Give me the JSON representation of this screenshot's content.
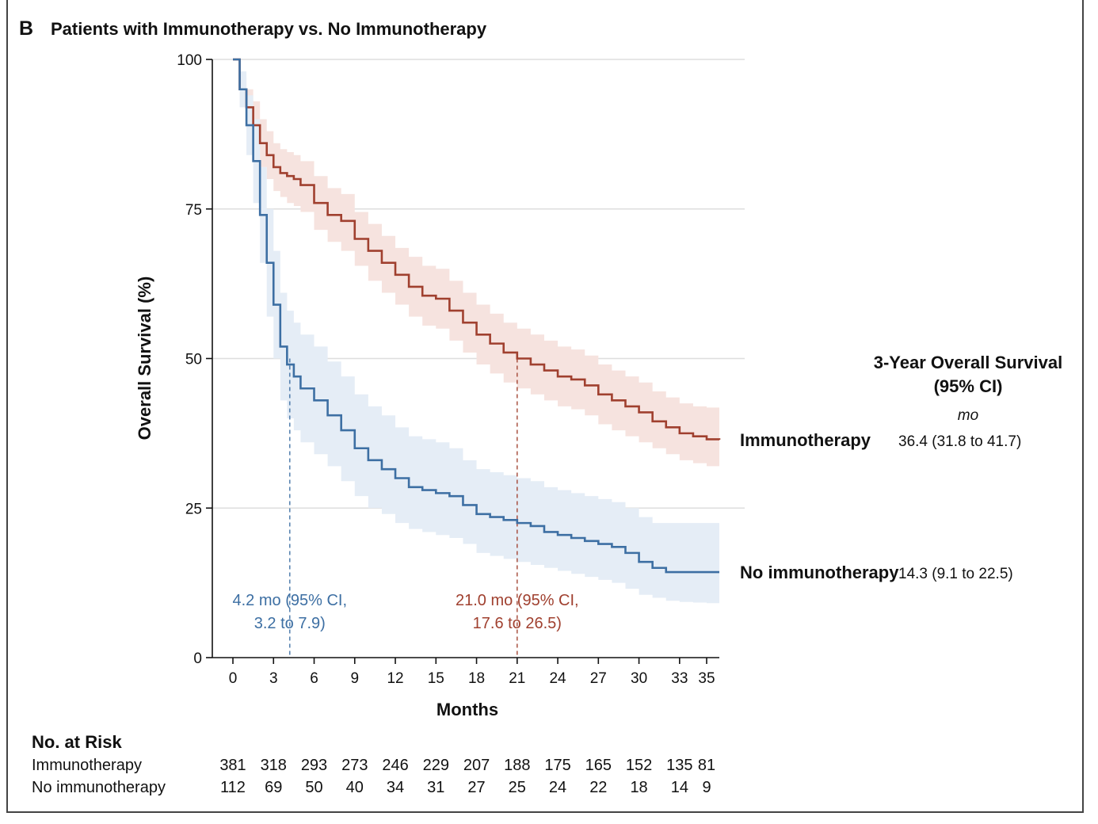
{
  "panel": {
    "letter": "B",
    "title": "Patients with Immunotherapy vs. No Immunotherapy"
  },
  "chart_data": {
    "type": "line",
    "title": "Patients with Immunotherapy vs. No Immunotherapy",
    "xlabel": "Months",
    "ylabel": "Overall Survival (%)",
    "xlim": [
      0,
      36
    ],
    "ylim": [
      0,
      100
    ],
    "xticks": [
      0,
      3,
      6,
      9,
      12,
      15,
      18,
      21,
      24,
      27,
      30,
      33,
      35
    ],
    "yticks": [
      0,
      25,
      50,
      75,
      100
    ],
    "grid": "horizontal",
    "series": [
      {
        "name": "Immunotherapy",
        "color": "#a0402f",
        "band_color": "#f6e3df",
        "x": [
          0,
          0.5,
          1,
          1.5,
          2,
          2.5,
          3,
          3.5,
          4,
          4.5,
          5,
          6,
          7,
          8,
          9,
          10,
          11,
          12,
          13,
          14,
          15,
          16,
          17,
          18,
          19,
          20,
          21,
          22,
          23,
          24,
          25,
          26,
          27,
          28,
          29,
          30,
          31,
          32,
          33,
          34,
          35,
          36
        ],
        "y": [
          100,
          95,
          92,
          89,
          86,
          84,
          82,
          81,
          80.5,
          80,
          79,
          76,
          74,
          73,
          70,
          68,
          66,
          64,
          62,
          60.5,
          60,
          58,
          56,
          54,
          52.5,
          51,
          50,
          49,
          48,
          47,
          46.5,
          45.5,
          44,
          43,
          42,
          41,
          39.5,
          38.5,
          37.5,
          37,
          36.5,
          36.4
        ],
        "lower": [
          100,
          93,
          89,
          85,
          82,
          80,
          78,
          77,
          76,
          75.5,
          74.5,
          71.5,
          69.5,
          68,
          65.5,
          63,
          61,
          59,
          57,
          55.5,
          55,
          53,
          51,
          49,
          47.5,
          46,
          45,
          44,
          43,
          42,
          41.5,
          40.5,
          39,
          38,
          37,
          36,
          35,
          34,
          33,
          32.5,
          32,
          31.8
        ],
        "upper": [
          100,
          97,
          95,
          93,
          90,
          88,
          86,
          85,
          84.5,
          84,
          83,
          80.5,
          78.5,
          77.5,
          74.5,
          72.5,
          70.5,
          68.5,
          67,
          65.5,
          65,
          63,
          61,
          59,
          57.5,
          56,
          55,
          54,
          53,
          52,
          51.5,
          50.5,
          49,
          48,
          47,
          46,
          44.5,
          43.5,
          42.5,
          42,
          41.8,
          41.7
        ]
      },
      {
        "name": "No immunotherapy",
        "color": "#3d6fa3",
        "band_color": "#e5edf6",
        "x": [
          0,
          0.5,
          1,
          1.5,
          2,
          2.5,
          3,
          3.5,
          4,
          4.5,
          5,
          6,
          7,
          8,
          9,
          10,
          11,
          12,
          13,
          14,
          15,
          16,
          17,
          18,
          19,
          20,
          21,
          22,
          23,
          24,
          25,
          26,
          27,
          28,
          29,
          30,
          31,
          32,
          33,
          34,
          35,
          36
        ],
        "y": [
          100,
          95,
          89,
          83,
          74,
          66,
          59,
          52,
          49,
          47,
          45,
          43,
          40.5,
          38,
          35,
          33,
          31.5,
          30,
          28.5,
          28,
          27.5,
          27,
          25.5,
          24,
          23.5,
          23,
          22.5,
          22,
          21,
          20.5,
          20,
          19.5,
          19,
          18.5,
          17.5,
          16,
          15,
          14.3,
          14.3,
          14.3,
          14.3,
          14.3
        ],
        "lower": [
          100,
          92,
          84,
          76,
          66,
          57,
          50,
          43,
          40,
          38,
          36,
          34,
          32,
          29.5,
          27,
          25,
          24,
          22.5,
          21.5,
          21,
          20.5,
          20,
          19,
          17.5,
          17,
          16.5,
          16,
          15.5,
          15,
          14.5,
          14,
          13.5,
          13,
          12.5,
          11.5,
          10.5,
          10,
          9.5,
          9.3,
          9.2,
          9.1,
          9.1
        ],
        "upper": [
          100,
          98,
          94,
          90,
          82,
          75,
          68,
          61,
          58,
          56,
          54,
          52,
          49.5,
          47,
          44,
          42,
          40.5,
          38.5,
          37,
          36.5,
          36,
          35,
          33,
          31.5,
          31,
          30.5,
          30,
          29.5,
          28.5,
          28,
          27.5,
          27,
          26.5,
          26,
          25,
          23.5,
          22.5,
          22.5,
          22.5,
          22.5,
          22.5,
          22.5
        ]
      }
    ],
    "medians": [
      {
        "series": "No immunotherapy",
        "x": 4.2,
        "label_line1": "4.2 mo (95% CI,",
        "label_line2": "3.2 to 7.9)",
        "color": "#3d6fa3"
      },
      {
        "series": "Immunotherapy",
        "x": 21.0,
        "label_line1": "21.0 mo (95% CI,",
        "label_line2": "17.6 to 26.5)",
        "color": "#a0402f"
      }
    ],
    "legend": {
      "placement": "right",
      "title_line1": "3-Year Overall Survival",
      "title_line2": "(95% CI)",
      "unit": "mo",
      "entries": [
        {
          "name": "Immunotherapy",
          "value": "36.4 (31.8 to 41.7)",
          "color": "#a0402f"
        },
        {
          "name": "No immunotherapy",
          "value": "14.3 (9.1 to 22.5)",
          "color": "#3d6fa3"
        }
      ]
    }
  },
  "risk_table": {
    "title": "No. at Risk",
    "rows": [
      {
        "label": "Immunotherapy",
        "values": [
          "381",
          "318",
          "293",
          "273",
          "246",
          "229",
          "207",
          "188",
          "175",
          "165",
          "152",
          "135",
          "81"
        ]
      },
      {
        "label": "No immunotherapy",
        "values": [
          "112",
          "69",
          "50",
          "40",
          "34",
          "31",
          "27",
          "25",
          "24",
          "22",
          "18",
          "14",
          "9"
        ]
      }
    ]
  }
}
